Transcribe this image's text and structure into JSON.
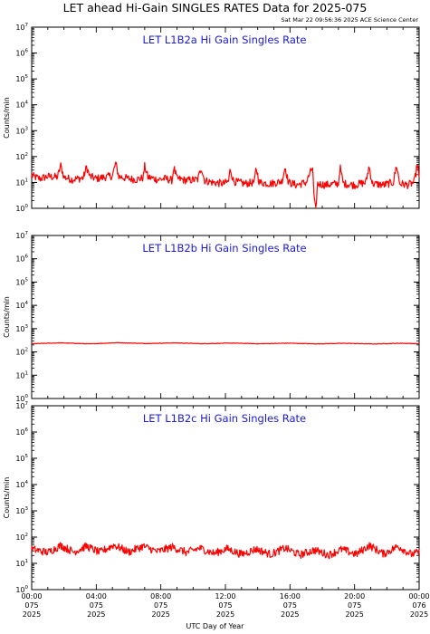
{
  "title": "LET ahead Hi-Gain SINGLES RATES Data for 2025-075",
  "subtitle": "Sat Mar 22 09:56:36 2025 ACE Science Center",
  "xlabel": "UTC Day of Year",
  "colors": {
    "line": "#ff0000",
    "panel_title": "#1a1adc",
    "axes": "#000000"
  },
  "chart_data": [
    {
      "type": "line",
      "title": "LET L1B2a Hi Gain Singles Rate",
      "ylabel": "Counts/min",
      "yscale": "log",
      "ylim": [
        1,
        10000000
      ],
      "yticks": [
        1,
        10,
        100,
        1000,
        10000,
        100000,
        1000000,
        10000000
      ],
      "xlim": [
        0,
        24
      ],
      "x_unit": "hours UTC on 2025-075",
      "series": [
        {
          "baseline": 15,
          "points": [
            [
              0,
              18
            ],
            [
              0.5,
              14
            ],
            [
              1,
              17
            ],
            [
              1.6,
              16
            ],
            [
              1.8,
              45
            ],
            [
              2.0,
              16
            ],
            [
              2.5,
              13
            ],
            [
              3.2,
              15
            ],
            [
              3.4,
              40
            ],
            [
              3.6,
              17
            ],
            [
              4.0,
              14
            ],
            [
              4.5,
              16
            ],
            [
              5.0,
              18
            ],
            [
              5.2,
              55
            ],
            [
              5.4,
              17
            ],
            [
              6.0,
              14
            ],
            [
              6.5,
              13
            ],
            [
              6.9,
              15
            ],
            [
              7.0,
              42
            ],
            [
              7.2,
              16
            ],
            [
              7.8,
              13
            ],
            [
              8.3,
              14
            ],
            [
              8.7,
              12
            ],
            [
              8.8,
              38
            ],
            [
              9.0,
              14
            ],
            [
              9.6,
              12
            ],
            [
              10.3,
              13
            ],
            [
              10.5,
              40
            ],
            [
              10.7,
              12
            ],
            [
              11.2,
              10
            ],
            [
              11.9,
              9
            ],
            [
              12.2,
              11
            ],
            [
              12.3,
              35
            ],
            [
              12.5,
              11
            ],
            [
              13.2,
              9
            ],
            [
              13.8,
              10
            ],
            [
              13.9,
              38
            ],
            [
              14.1,
              10
            ],
            [
              14.8,
              9
            ],
            [
              15.5,
              11
            ],
            [
              15.7,
              40
            ],
            [
              15.9,
              10
            ],
            [
              16.4,
              8
            ],
            [
              17.0,
              10
            ],
            [
              17.4,
              38
            ],
            [
              17.5,
              2
            ],
            [
              17.6,
              0.8
            ],
            [
              17.7,
              9
            ],
            [
              18.2,
              8
            ],
            [
              19.0,
              9
            ],
            [
              19.1,
              40
            ],
            [
              19.3,
              9
            ],
            [
              20.0,
              8
            ],
            [
              20.7,
              10
            ],
            [
              20.9,
              42
            ],
            [
              21.1,
              9
            ],
            [
              21.8,
              8
            ],
            [
              22.4,
              10
            ],
            [
              22.6,
              45
            ],
            [
              22.8,
              9
            ],
            [
              23.3,
              8
            ],
            [
              23.7,
              10
            ],
            [
              23.9,
              55
            ],
            [
              24.0,
              12
            ]
          ]
        }
      ]
    },
    {
      "type": "line",
      "title": "LET L1B2b Hi Gain Singles Rate",
      "ylabel": "Counts/min",
      "yscale": "log",
      "ylim": [
        1,
        10000000
      ],
      "yticks": [
        1,
        10,
        100,
        1000,
        10000,
        100000,
        1000000,
        10000000
      ],
      "xlim": [
        0,
        24
      ],
      "x_unit": "hours UTC on 2025-075",
      "series": [
        {
          "baseline": 220,
          "points": [
            [
              0,
              225
            ],
            [
              1.8,
              245
            ],
            [
              3.6,
              222
            ],
            [
              5.3,
              250
            ],
            [
              7.1,
              230
            ],
            [
              8.9,
              245
            ],
            [
              10.6,
              226
            ],
            [
              12.4,
              240
            ],
            [
              14.1,
              224
            ],
            [
              15.9,
              238
            ],
            [
              17.6,
              222
            ],
            [
              19.4,
              235
            ],
            [
              21.2,
              220
            ],
            [
              22.9,
              236
            ],
            [
              24,
              225
            ]
          ]
        }
      ]
    },
    {
      "type": "line",
      "title": "LET L1B2c Hi Gain Singles Rate",
      "ylabel": "Counts/min",
      "yscale": "log",
      "ylim": [
        1,
        10000000
      ],
      "yticks": [
        1,
        10,
        100,
        1000,
        10000,
        100000,
        1000000,
        10000000
      ],
      "xlim": [
        0,
        24
      ],
      "x_unit": "hours UTC on 2025-075",
      "series": [
        {
          "baseline": 28,
          "points": [
            [
              0,
              35
            ],
            [
              0.5,
              30
            ],
            [
              1.0,
              26
            ],
            [
              1.8,
              48
            ],
            [
              2.6,
              27
            ],
            [
              3.4,
              45
            ],
            [
              4.2,
              26
            ],
            [
              5.1,
              50
            ],
            [
              6.0,
              27
            ],
            [
              6.9,
              45
            ],
            [
              7.8,
              28
            ],
            [
              8.7,
              42
            ],
            [
              9.6,
              26
            ],
            [
              10.4,
              38
            ],
            [
              11.3,
              24
            ],
            [
              12.1,
              36
            ],
            [
              13.0,
              22
            ],
            [
              13.9,
              35
            ],
            [
              14.8,
              22
            ],
            [
              15.7,
              38
            ],
            [
              16.6,
              21
            ],
            [
              17.5,
              32
            ],
            [
              18.4,
              21
            ],
            [
              19.2,
              34
            ],
            [
              20.1,
              22
            ],
            [
              20.9,
              48
            ],
            [
              21.8,
              23
            ],
            [
              22.7,
              45
            ],
            [
              23.5,
              22
            ],
            [
              24,
              26
            ]
          ]
        }
      ]
    }
  ],
  "xticks": [
    {
      "hour": 0,
      "time": "00:00",
      "doy": "075",
      "year": "2025"
    },
    {
      "hour": 4,
      "time": "04:00",
      "doy": "075",
      "year": "2025"
    },
    {
      "hour": 8,
      "time": "08:00",
      "doy": "075",
      "year": "2025"
    },
    {
      "hour": 12,
      "time": "12:00",
      "doy": "075",
      "year": "2025"
    },
    {
      "hour": 16,
      "time": "16:00",
      "doy": "075",
      "year": "2025"
    },
    {
      "hour": 20,
      "time": "20:00",
      "doy": "075",
      "year": "2025"
    },
    {
      "hour": 24,
      "time": "00:00",
      "doy": "076",
      "year": "2025"
    }
  ]
}
